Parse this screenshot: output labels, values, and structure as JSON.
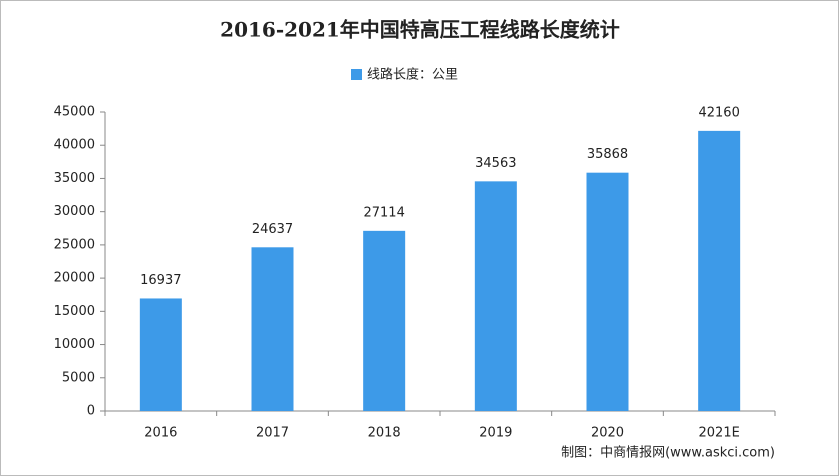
{
  "chart_data": {
    "type": "bar",
    "title": "2016-2021年中国特高压工程线路长度统计",
    "legend": "线路长度：公里",
    "categories": [
      "2016",
      "2017",
      "2018",
      "2019",
      "2020",
      "2021E"
    ],
    "values": [
      16937,
      24637,
      27114,
      34563,
      35868,
      42160
    ],
    "color": "#3d9ae8",
    "ylim": [
      0,
      45000
    ],
    "yticks": [
      0,
      5000,
      10000,
      15000,
      20000,
      25000,
      30000,
      35000,
      40000,
      45000
    ],
    "source": "制图：中商情报网(www.askci.com)"
  }
}
